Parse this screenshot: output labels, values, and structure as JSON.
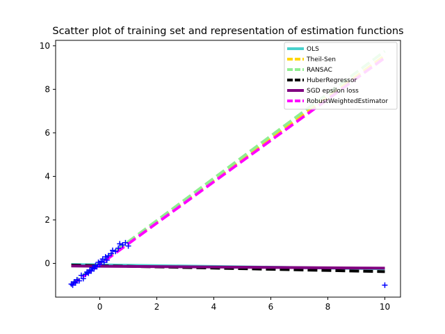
{
  "chart_data": {
    "type": "scatter",
    "title": "Scatter plot of training set and representation of estimation functions",
    "xlabel": "",
    "ylabel": "",
    "xlim": [
      -1.55,
      10.55
    ],
    "ylim": [
      -1.55,
      10.25
    ],
    "xticks": [
      0,
      2,
      4,
      6,
      8,
      10
    ],
    "yticks": [
      0,
      2,
      4,
      6,
      8,
      10
    ],
    "xtick_labels": [
      "0",
      "2",
      "4",
      "6",
      "8",
      "10"
    ],
    "ytick_labels": [
      "0",
      "2",
      "4",
      "6",
      "8",
      "10"
    ],
    "grid": false,
    "legend_position": "top-right",
    "points": {
      "marker": "+",
      "color": "#0000ff",
      "x": [
        -1.0,
        -0.95,
        -0.9,
        -0.85,
        -0.8,
        -0.72,
        -0.65,
        -0.58,
        -0.5,
        -0.45,
        -0.4,
        -0.35,
        -0.3,
        -0.25,
        -0.2,
        -0.15,
        -0.1,
        -0.05,
        0.0,
        0.05,
        0.1,
        0.15,
        0.2,
        0.25,
        0.3,
        0.4,
        0.45,
        0.55,
        0.65,
        0.7,
        0.8,
        0.9,
        1.0,
        10.0
      ],
      "y": [
        -0.95,
        -1.0,
        -0.85,
        -0.9,
        -0.75,
        -0.8,
        -0.55,
        -0.7,
        -0.5,
        -0.4,
        -0.45,
        -0.3,
        -0.35,
        -0.2,
        -0.25,
        -0.1,
        -0.15,
        0.05,
        -0.05,
        0.1,
        0.2,
        0.05,
        0.3,
        0.15,
        0.35,
        0.45,
        0.6,
        0.55,
        0.7,
        0.9,
        0.85,
        0.95,
        0.8,
        -1.0
      ]
    },
    "series": [
      {
        "name": "OLS",
        "color": "#48d1cc",
        "dash": "solid",
        "x": [
          -1,
          10
        ],
        "y": [
          -0.05,
          -0.25
        ]
      },
      {
        "name": "Theil-Sen",
        "color": "#ffd700",
        "dash": "dashed",
        "x": [
          -1,
          10
        ],
        "y": [
          -0.95,
          9.55
        ]
      },
      {
        "name": "RANSAC",
        "color": "#90ee90",
        "dash": "dashed",
        "x": [
          -1,
          10
        ],
        "y": [
          -0.95,
          9.75
        ]
      },
      {
        "name": "HuberRegressor",
        "color": "#000000",
        "dash": "dashed",
        "x": [
          -1,
          10
        ],
        "y": [
          -0.08,
          -0.38
        ]
      },
      {
        "name": "SGD epsilon loss",
        "color": "#800080",
        "dash": "solid",
        "x": [
          -1,
          10
        ],
        "y": [
          -0.12,
          -0.22
        ]
      },
      {
        "name": "RobustWeightedEstimator",
        "color": "#ff00ff",
        "dash": "dashed",
        "x": [
          -1,
          10
        ],
        "y": [
          -1.0,
          9.45
        ]
      }
    ]
  }
}
